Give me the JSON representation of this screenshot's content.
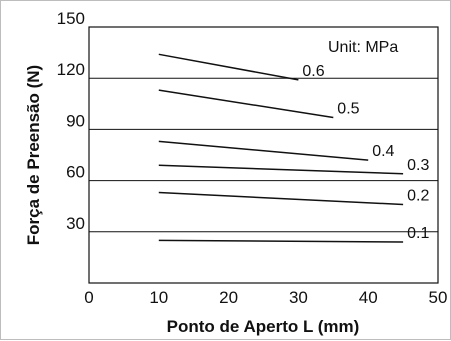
{
  "chart_data": {
    "type": "line",
    "xlabel": "Ponto de Aperto L (mm)",
    "ylabel": "Força de Preensão (N)",
    "unit_note": "Unit: MPa",
    "xlim": [
      0,
      50
    ],
    "ylim": [
      0,
      150
    ],
    "x_ticks": [
      "0",
      "10",
      "20",
      "30",
      "40",
      "50"
    ],
    "y_ticks": [
      "30",
      "60",
      "90",
      "120",
      "150"
    ],
    "grid": "horizontal",
    "series": [
      {
        "name": "0.6",
        "x": [
          10,
          30
        ],
        "y": [
          134,
          119
        ]
      },
      {
        "name": "0.5",
        "x": [
          10,
          35
        ],
        "y": [
          113,
          97
        ]
      },
      {
        "name": "0.4",
        "x": [
          10,
          40
        ],
        "y": [
          83,
          72
        ]
      },
      {
        "name": "0.3",
        "x": [
          10,
          45
        ],
        "y": [
          69,
          64
        ]
      },
      {
        "name": "0.2",
        "x": [
          10,
          45
        ],
        "y": [
          53,
          46
        ]
      },
      {
        "name": "0.1",
        "x": [
          10,
          45
        ],
        "y": [
          25,
          24
        ]
      }
    ]
  }
}
